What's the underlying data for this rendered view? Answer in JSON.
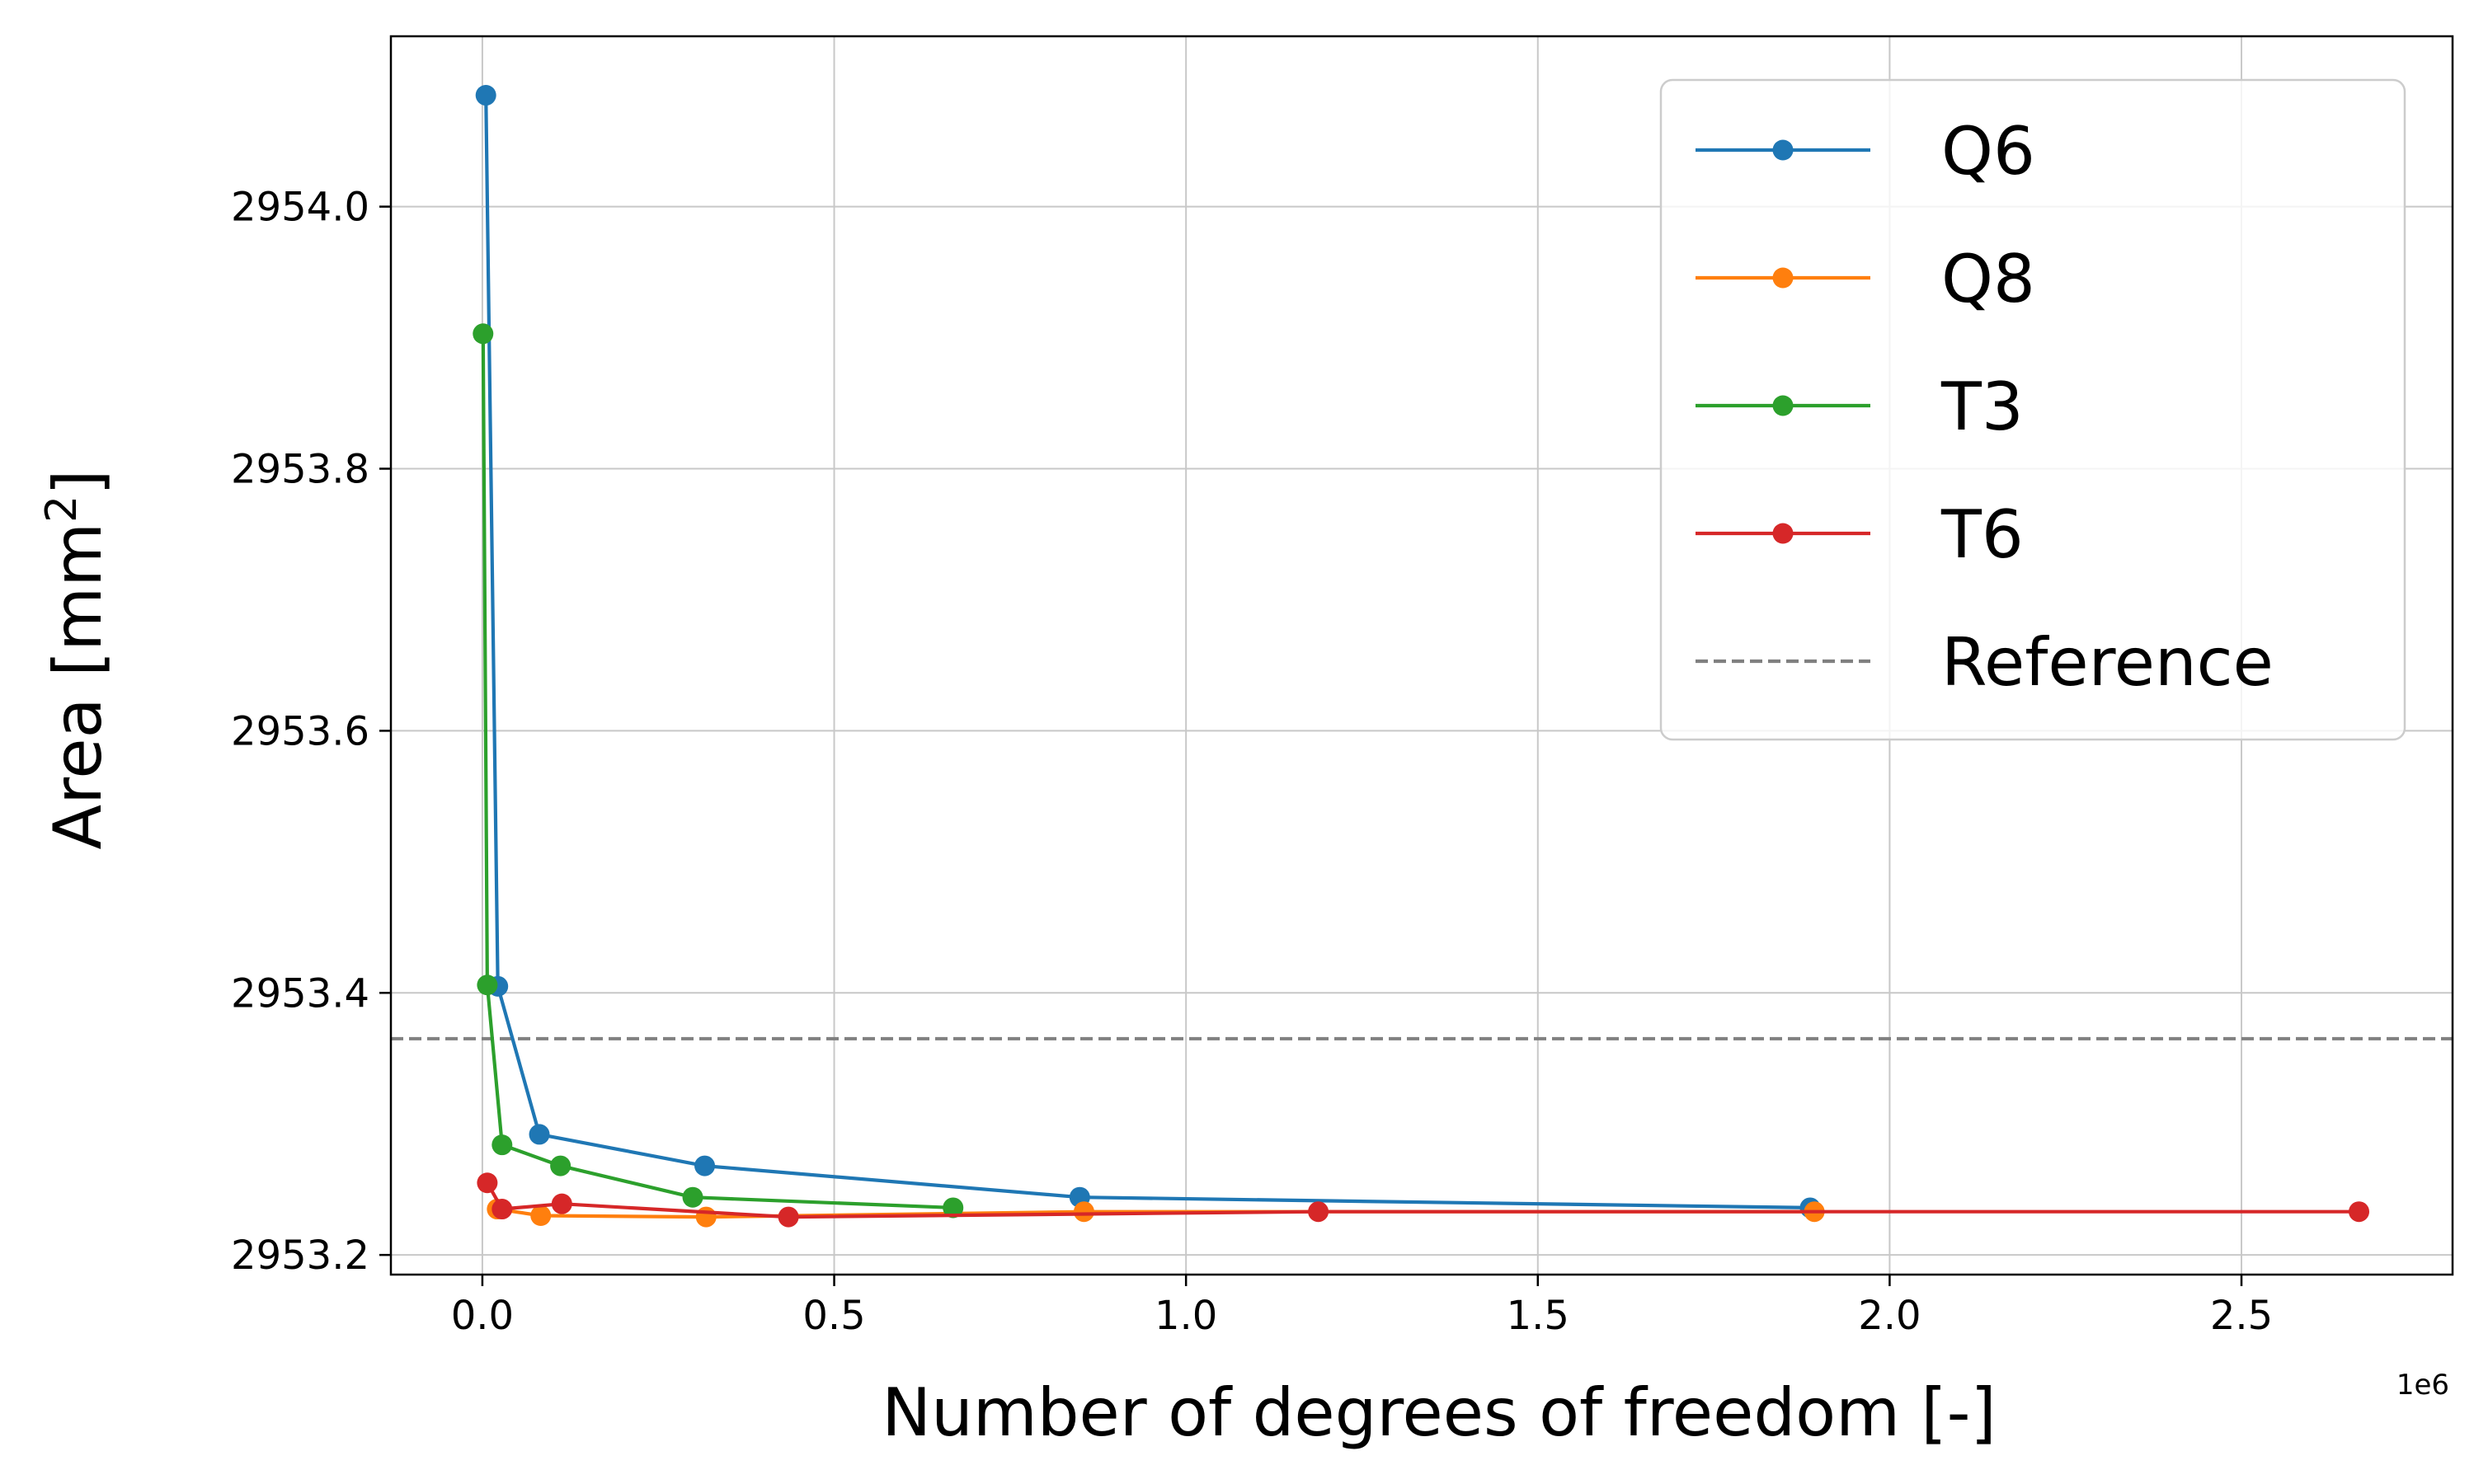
{
  "chart_data": {
    "type": "line",
    "xlabel": "Number of degrees of freedom [-]",
    "ylabel_main": "Area [mm",
    "ylabel_sup": "2",
    "ylabel_end": "]",
    "x_offset_label": "1e6",
    "xlim": [
      -0.13,
      2.8
    ],
    "ylim": [
      2953.185,
      2954.13
    ],
    "xticks": [
      0.0,
      0.5,
      1.0,
      1.5,
      2.0,
      2.5
    ],
    "xtick_labels": [
      "0.0",
      "0.5",
      "1.0",
      "1.5",
      "2.0",
      "2.5"
    ],
    "yticks": [
      2953.2,
      2953.4,
      2953.6,
      2953.8,
      2954.0
    ],
    "ytick_labels": [
      "2953.2",
      "2953.4",
      "2953.6",
      "2953.8",
      "2954.0"
    ],
    "grid": true,
    "legend_position": "top-right",
    "series": [
      {
        "name": "Q6",
        "color": "#1f77b4",
        "x": [
          0.005,
          0.022,
          0.081,
          0.316,
          0.849,
          1.887
        ],
        "y": [
          2954.085,
          2953.405,
          2953.292,
          2953.268,
          2953.244,
          2953.236
        ]
      },
      {
        "name": "Q8",
        "color": "#ff7f0e",
        "x": [
          0.021,
          0.083,
          0.318,
          0.855,
          1.893
        ],
        "y": [
          2953.235,
          2953.23,
          2953.229,
          2953.233,
          2953.233
        ]
      },
      {
        "name": "T3",
        "color": "#2ca02c",
        "x": [
          0.001,
          0.007,
          0.028,
          0.111,
          0.299,
          0.669
        ],
        "y": [
          2953.903,
          2953.406,
          2953.284,
          2953.268,
          2953.244,
          2953.236
        ]
      },
      {
        "name": "T6",
        "color": "#d62728",
        "x": [
          0.007,
          0.028,
          0.113,
          0.435,
          1.188,
          2.667
        ],
        "y": [
          2953.255,
          2953.235,
          2953.239,
          2953.229,
          2953.233,
          2953.233
        ]
      }
    ],
    "reference": {
      "name": "Reference",
      "color": "#808080",
      "y": 2953.365
    }
  }
}
